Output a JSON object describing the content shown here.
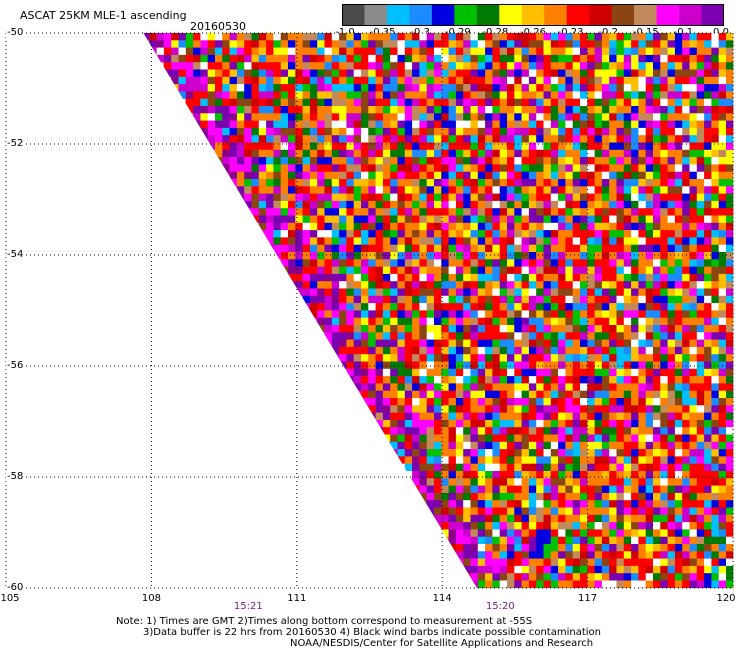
{
  "header": {
    "title": "ASCAT 25KM MLE-1 ascending",
    "date": "20160530"
  },
  "colorbar": {
    "colors": [
      "#4a4a4a",
      "#8a8a8a",
      "#00bfff",
      "#1a8cff",
      "#0000e0",
      "#00c000",
      "#007a00",
      "#ffff00",
      "#ffbf00",
      "#ff7f00",
      "#ff0000",
      "#d00000",
      "#8b4513",
      "#c28a5a",
      "#ff00ff",
      "#cc00cc",
      "#7a00b0"
    ],
    "labels": [
      "-1.0",
      "-0.35",
      "-0.3",
      "-0.29",
      "-0.28",
      "-0.26",
      "-0.23",
      "-0.2",
      "-0.15",
      "-0.1",
      "0.0"
    ]
  },
  "chart_data": {
    "type": "heatmap",
    "title": "ASCAT 25KM MLE-1 ascending",
    "subtitle": "20160530",
    "x_ticks": [
      "105",
      "108",
      "111",
      "114",
      "117",
      "120"
    ],
    "y_ticks": [
      "-50",
      "-52",
      "-54",
      "-56",
      "-58",
      "-60"
    ],
    "xlim": [
      105,
      120
    ],
    "ylim": [
      -60,
      -50
    ],
    "time_labels": [
      {
        "x": 110,
        "label": "15:21"
      },
      {
        "x": 115.2,
        "label": "15:20"
      }
    ],
    "swath_edge": [
      [
        108,
        -50
      ],
      [
        114.8,
        -60
      ]
    ],
    "color_scale": [
      "-1.0",
      "-0.35",
      "-0.3",
      "-0.29",
      "-0.28",
      "-0.26",
      "-0.23",
      "-0.2",
      "-0.15",
      "-0.1",
      "0.0"
    ],
    "grid": true
  },
  "notes": {
    "line1": "Note: 1) Times are GMT 2)Times along bottom correspond to measurement at -55S",
    "line2": "3)Data buffer is 22 hrs from 20160530 4) Black wind barbs indicate possible contamination",
    "line3": "NOAA/NESDIS/Center for Satellite Applications and Research"
  }
}
